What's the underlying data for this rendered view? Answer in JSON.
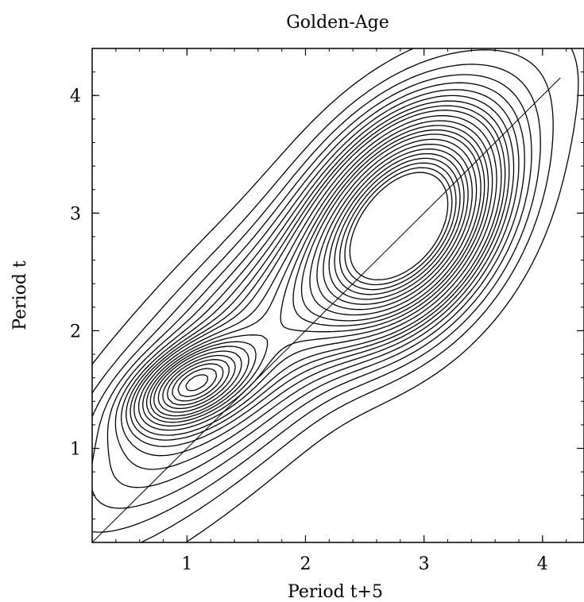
{
  "chart_data": {
    "type": "contour",
    "title": "Golden-Age",
    "xlabel": "Period t+5",
    "ylabel": "Period t",
    "xlim": [
      0.2,
      4.35
    ],
    "ylim": [
      0.2,
      4.4
    ],
    "xticks": [
      1,
      2,
      3,
      4
    ],
    "yticks": [
      1,
      2,
      3,
      4
    ],
    "grid": false,
    "legend": "none",
    "reference_line": {
      "from": [
        0.2,
        0.2
      ],
      "to": [
        4.15,
        4.15
      ]
    },
    "contour_field": {
      "peaks": [
        {
          "x": 2.85,
          "y": 2.9,
          "sx": 0.47,
          "sy": 0.55,
          "rho": 0.35,
          "amp": 1.0
        },
        {
          "x": 1.05,
          "y": 1.55,
          "sx": 0.3,
          "sy": 0.22,
          "rho": 0.5,
          "amp": 0.55
        },
        {
          "x": 1.8,
          "y": 2.1,
          "sx": 1.1,
          "sy": 1.1,
          "rho": 0.85,
          "amp": 0.35
        }
      ],
      "levels": [
        0.03,
        0.06,
        0.09,
        0.12,
        0.15,
        0.18,
        0.21,
        0.24,
        0.27,
        0.3,
        0.34,
        0.38,
        0.42,
        0.46,
        0.5,
        0.55,
        0.6,
        0.65,
        0.7,
        0.75,
        0.8,
        0.85,
        0.9
      ]
    }
  }
}
